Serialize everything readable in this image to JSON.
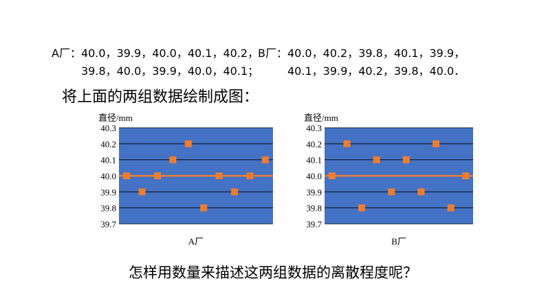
{
  "text_lines": [
    [
      "A厂：40.0，39.9，40.0，40.1，40.2，",
      "B厂：40.0，40.2，39.8，40.1，39.9，"
    ],
    [
      "39.8，40.0，39.9，40.0，40.1；",
      "40.1，39.9，40.2，39.8，40.0．"
    ]
  ],
  "heading": "将上面的两组数据绘制成图：",
  "question": "怎样用数量来描述这两组数据的离散程度呢？",
  "chart_data": [
    {
      "type": "scatter",
      "ylabel": "直径/mm",
      "xlabel": "A厂",
      "values": [
        40.0,
        39.9,
        40.0,
        40.1,
        40.2,
        39.8,
        40.0,
        39.9,
        40.0,
        40.1
      ],
      "color": "#ed7d31",
      "background": "#4472c4",
      "reference_line": 40.0,
      "ylim": [
        39.7,
        40.3
      ],
      "yticks": [
        39.7,
        39.8,
        39.9,
        {
          "value": 40.0,
          "label": "40.0"
        },
        40.1,
        40.2,
        40.3
      ],
      "grid": true
    },
    {
      "type": "scatter",
      "ylabel": "直径/mm",
      "xlabel": "B厂",
      "values": [
        40.0,
        40.2,
        39.8,
        40.1,
        39.9,
        40.1,
        39.9,
        40.2,
        39.8,
        40.0
      ],
      "color": "#ed7d31",
      "background": "#4472c4",
      "reference_line": 40.0,
      "ylim": [
        39.7,
        40.3
      ],
      "yticks": [
        39.7,
        39.8,
        39.9,
        {
          "value": 40.0,
          "label": "40.0"
        },
        40.1,
        40.2,
        40.3
      ],
      "grid": true
    }
  ]
}
